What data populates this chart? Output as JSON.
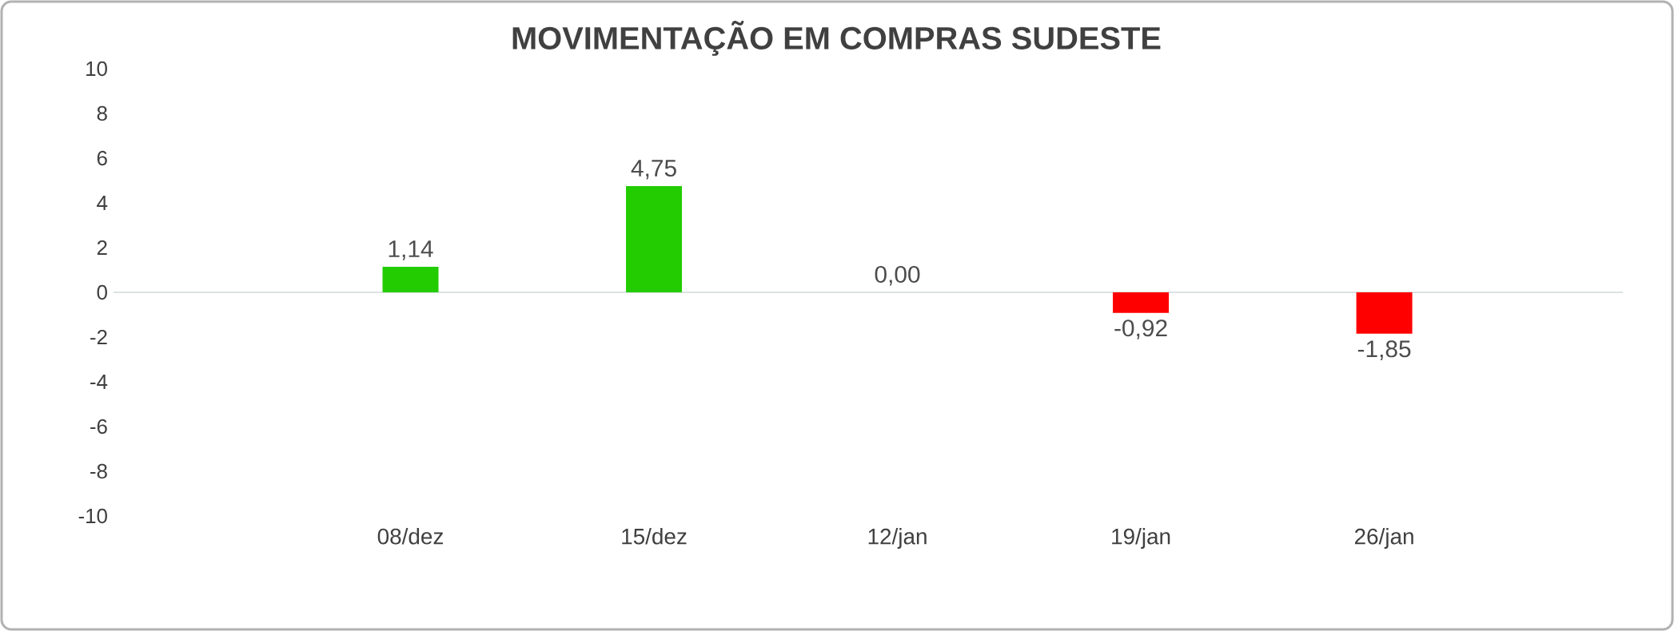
{
  "chart_data": {
    "type": "bar",
    "title": "MOVIMENTAÇÃO EM COMPRAS SUDESTE",
    "categories": [
      "08/dez",
      "15/dez",
      "12/jan",
      "19/jan",
      "26/jan"
    ],
    "values": [
      1.14,
      4.75,
      0.0,
      -0.92,
      -1.85
    ],
    "colors": [
      "#22cc00",
      "#22cc00",
      "#22cc00",
      "#ff0000",
      "#ff0000"
    ],
    "value_labels": [
      "1,14",
      "4,75",
      "0,00",
      "-0,92",
      "-1,85"
    ],
    "ylim": [
      -10,
      10
    ],
    "yticks": [
      -10,
      -8,
      -6,
      -4,
      -2,
      0,
      2,
      4,
      6,
      8,
      10
    ],
    "ref_lines": [
      {
        "axis": "y",
        "value": 0,
        "color": "#d0d8d8"
      }
    ]
  }
}
